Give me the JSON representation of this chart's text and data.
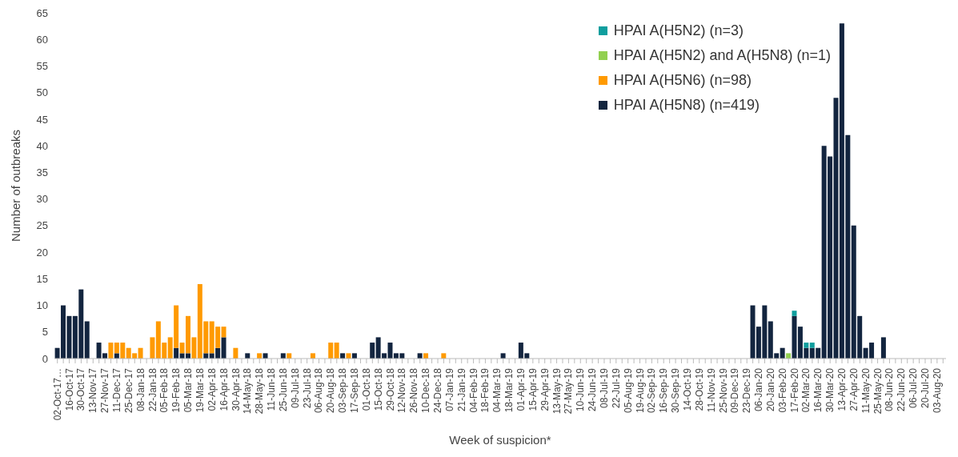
{
  "chart_data": {
    "type": "bar",
    "stacked": true,
    "xlabel": "Week of suspicion*",
    "ylabel": "Number of outbreaks",
    "categories": [
      "02-Oct-17…",
      null,
      "16-Oct-17",
      null,
      "30-Oct-17",
      null,
      "13-Nov-17",
      null,
      "27-Nov-17",
      null,
      "11-Dec-17",
      null,
      "25-Dec-17",
      null,
      "08-Jan-18",
      null,
      "22-Jan-18",
      null,
      "05-Feb-18",
      null,
      "19-Feb-18",
      null,
      "05-Mar-18",
      null,
      "19-Mar-18",
      null,
      "02-Apr-18",
      null,
      "16-Apr-18",
      null,
      "30-Apr-18",
      null,
      "14-May-18",
      null,
      "28-May-18",
      null,
      "11-Jun-18",
      null,
      "25-Jun-18",
      null,
      "09-Jul-18",
      null,
      "23-Jul-18",
      null,
      "06-Aug-18",
      null,
      "20-Aug-18",
      null,
      "03-Sep-18",
      null,
      "17-Sep-18",
      null,
      "01-Oct-18",
      null,
      "15-Oct-18",
      null,
      "29-Oct-18",
      null,
      "12-Nov-18",
      null,
      "26-Nov-18",
      null,
      "10-Dec-18",
      null,
      "24-Dec-18",
      null,
      "07-Jan-19",
      null,
      "21-Jan-19",
      null,
      "04-Feb-19",
      null,
      "18-Feb-19",
      null,
      "04-Mar-19",
      null,
      "18-Mar-19",
      null,
      "01-Apr-19",
      null,
      "15-Apr-19",
      null,
      "29-Apr-19",
      null,
      "13-May-19",
      null,
      "27-May-19",
      null,
      "10-Jun-19",
      null,
      "24-Jun-19",
      null,
      "08-Jul-19",
      null,
      "22-Jul-19",
      null,
      "05-Aug-19",
      null,
      "19-Aug-19",
      null,
      "02-Sep-19",
      null,
      "16-Sep-19",
      null,
      "30-Sep-19",
      null,
      "14-Oct-19",
      null,
      "28-Oct-19",
      null,
      "11-Nov-19",
      null,
      "25-Nov-19",
      null,
      "09-Dec-19",
      null,
      "23-Dec-19",
      null,
      "06-Jan-20",
      null,
      "20-Jan-20",
      null,
      "03-Feb-20",
      null,
      "17-Feb-20",
      null,
      "02-Mar-20",
      null,
      "16-Mar-20",
      null,
      "30-Mar-20",
      null,
      "13-Apr-20",
      null,
      "27-Apr-20",
      null,
      "11-May-20",
      null,
      "25-May-20",
      null,
      "08-Jun-20",
      null,
      "22-Jun-20",
      null,
      "06-Jul-20",
      null,
      "20-Jul-20",
      null,
      "03-Aug-20",
      null
    ],
    "series": [
      {
        "name": "HPAI A(H5N8) (n=419)",
        "color": "#13253f",
        "values": [
          2,
          10,
          8,
          8,
          13,
          7,
          0,
          3,
          1,
          0,
          1,
          0,
          0,
          0,
          0,
          0,
          0,
          0,
          0,
          0,
          2,
          1,
          1,
          0,
          0,
          1,
          1,
          2,
          4,
          0,
          0,
          0,
          1,
          0,
          0,
          1,
          0,
          0,
          1,
          0,
          0,
          0,
          0,
          0,
          0,
          0,
          0,
          0,
          1,
          0,
          1,
          0,
          0,
          3,
          4,
          1,
          3,
          1,
          1,
          0,
          0,
          1,
          0,
          0,
          0,
          0,
          0,
          0,
          0,
          0,
          0,
          0,
          0,
          0,
          0,
          1,
          0,
          0,
          3,
          1,
          0,
          0,
          0,
          0,
          0,
          0,
          0,
          0,
          0,
          0,
          0,
          0,
          0,
          0,
          0,
          0,
          0,
          0,
          0,
          0,
          0,
          0,
          0,
          0,
          0,
          0,
          0,
          0,
          0,
          0,
          0,
          0,
          0,
          0,
          0,
          0,
          0,
          10,
          6,
          10,
          7,
          1,
          2,
          0,
          8,
          6,
          2,
          2,
          2,
          40,
          38,
          49,
          63,
          42,
          25,
          8,
          2,
          3,
          0,
          4,
          0,
          0,
          0,
          0,
          0,
          0,
          0,
          0,
          0,
          0
        ]
      },
      {
        "name": "HPAI A(H5N6) (n=98)",
        "color": "#ff9a00",
        "values": [
          0,
          0,
          0,
          0,
          0,
          0,
          0,
          0,
          0,
          3,
          2,
          3,
          2,
          1,
          2,
          0,
          4,
          7,
          3,
          4,
          8,
          2,
          7,
          4,
          14,
          6,
          6,
          4,
          2,
          0,
          2,
          0,
          0,
          0,
          1,
          0,
          0,
          0,
          0,
          1,
          0,
          0,
          0,
          1,
          0,
          0,
          3,
          3,
          0,
          1,
          0,
          0,
          0,
          0,
          0,
          0,
          0,
          0,
          0,
          0,
          0,
          0,
          1,
          0,
          0,
          1,
          0,
          0,
          0,
          0,
          0,
          0,
          0,
          0,
          0,
          0,
          0,
          0,
          0,
          0,
          0,
          0,
          0,
          0,
          0,
          0,
          0,
          0,
          0,
          0,
          0,
          0,
          0,
          0,
          0,
          0,
          0,
          0,
          0,
          0,
          0,
          0,
          0,
          0,
          0,
          0,
          0,
          0,
          0,
          0,
          0,
          0,
          0,
          0,
          0,
          0,
          0,
          0,
          0,
          0,
          0,
          0,
          0,
          0,
          0,
          0,
          0,
          0,
          0,
          0,
          0,
          0,
          0,
          0,
          0,
          0,
          0,
          0,
          0,
          0,
          0,
          0,
          0,
          0,
          0,
          0,
          0,
          0,
          0,
          0
        ]
      },
      {
        "name": "HPAI A(H5N2) and A(H5N8) (n=1)",
        "color": "#92d050",
        "values": [
          0,
          0,
          0,
          0,
          0,
          0,
          0,
          0,
          0,
          0,
          0,
          0,
          0,
          0,
          0,
          0,
          0,
          0,
          0,
          0,
          0,
          0,
          0,
          0,
          0,
          0,
          0,
          0,
          0,
          0,
          0,
          0,
          0,
          0,
          0,
          0,
          0,
          0,
          0,
          0,
          0,
          0,
          0,
          0,
          0,
          0,
          0,
          0,
          0,
          0,
          0,
          0,
          0,
          0,
          0,
          0,
          0,
          0,
          0,
          0,
          0,
          0,
          0,
          0,
          0,
          0,
          0,
          0,
          0,
          0,
          0,
          0,
          0,
          0,
          0,
          0,
          0,
          0,
          0,
          0,
          0,
          0,
          0,
          0,
          0,
          0,
          0,
          0,
          0,
          0,
          0,
          0,
          0,
          0,
          0,
          0,
          0,
          0,
          0,
          0,
          0,
          0,
          0,
          0,
          0,
          0,
          0,
          0,
          0,
          0,
          0,
          0,
          0,
          0,
          0,
          0,
          0,
          0,
          0,
          0,
          0,
          0,
          0,
          1,
          0,
          0,
          0,
          0,
          0,
          0,
          0,
          0,
          0,
          0,
          0,
          0,
          0,
          0,
          0,
          0,
          0,
          0,
          0,
          0,
          0,
          0,
          0,
          0,
          0,
          0
        ]
      },
      {
        "name": "HPAI A(H5N2) (n=3)",
        "color": "#0f9e9e",
        "values": [
          0,
          0,
          0,
          0,
          0,
          0,
          0,
          0,
          0,
          0,
          0,
          0,
          0,
          0,
          0,
          0,
          0,
          0,
          0,
          0,
          0,
          0,
          0,
          0,
          0,
          0,
          0,
          0,
          0,
          0,
          0,
          0,
          0,
          0,
          0,
          0,
          0,
          0,
          0,
          0,
          0,
          0,
          0,
          0,
          0,
          0,
          0,
          0,
          0,
          0,
          0,
          0,
          0,
          0,
          0,
          0,
          0,
          0,
          0,
          0,
          0,
          0,
          0,
          0,
          0,
          0,
          0,
          0,
          0,
          0,
          0,
          0,
          0,
          0,
          0,
          0,
          0,
          0,
          0,
          0,
          0,
          0,
          0,
          0,
          0,
          0,
          0,
          0,
          0,
          0,
          0,
          0,
          0,
          0,
          0,
          0,
          0,
          0,
          0,
          0,
          0,
          0,
          0,
          0,
          0,
          0,
          0,
          0,
          0,
          0,
          0,
          0,
          0,
          0,
          0,
          0,
          0,
          0,
          0,
          0,
          0,
          0,
          0,
          0,
          1,
          0,
          1,
          1,
          0,
          0,
          0,
          0,
          0,
          0,
          0,
          0,
          0,
          0,
          0,
          0,
          0,
          0,
          0,
          0,
          0,
          0,
          0,
          0,
          0,
          0
        ]
      }
    ],
    "ylim": [
      0,
      65
    ],
    "yticks": [
      0,
      5,
      10,
      15,
      20,
      25,
      30,
      35,
      40,
      45,
      50,
      55,
      60,
      65
    ],
    "grid": false,
    "legend": "top right"
  }
}
